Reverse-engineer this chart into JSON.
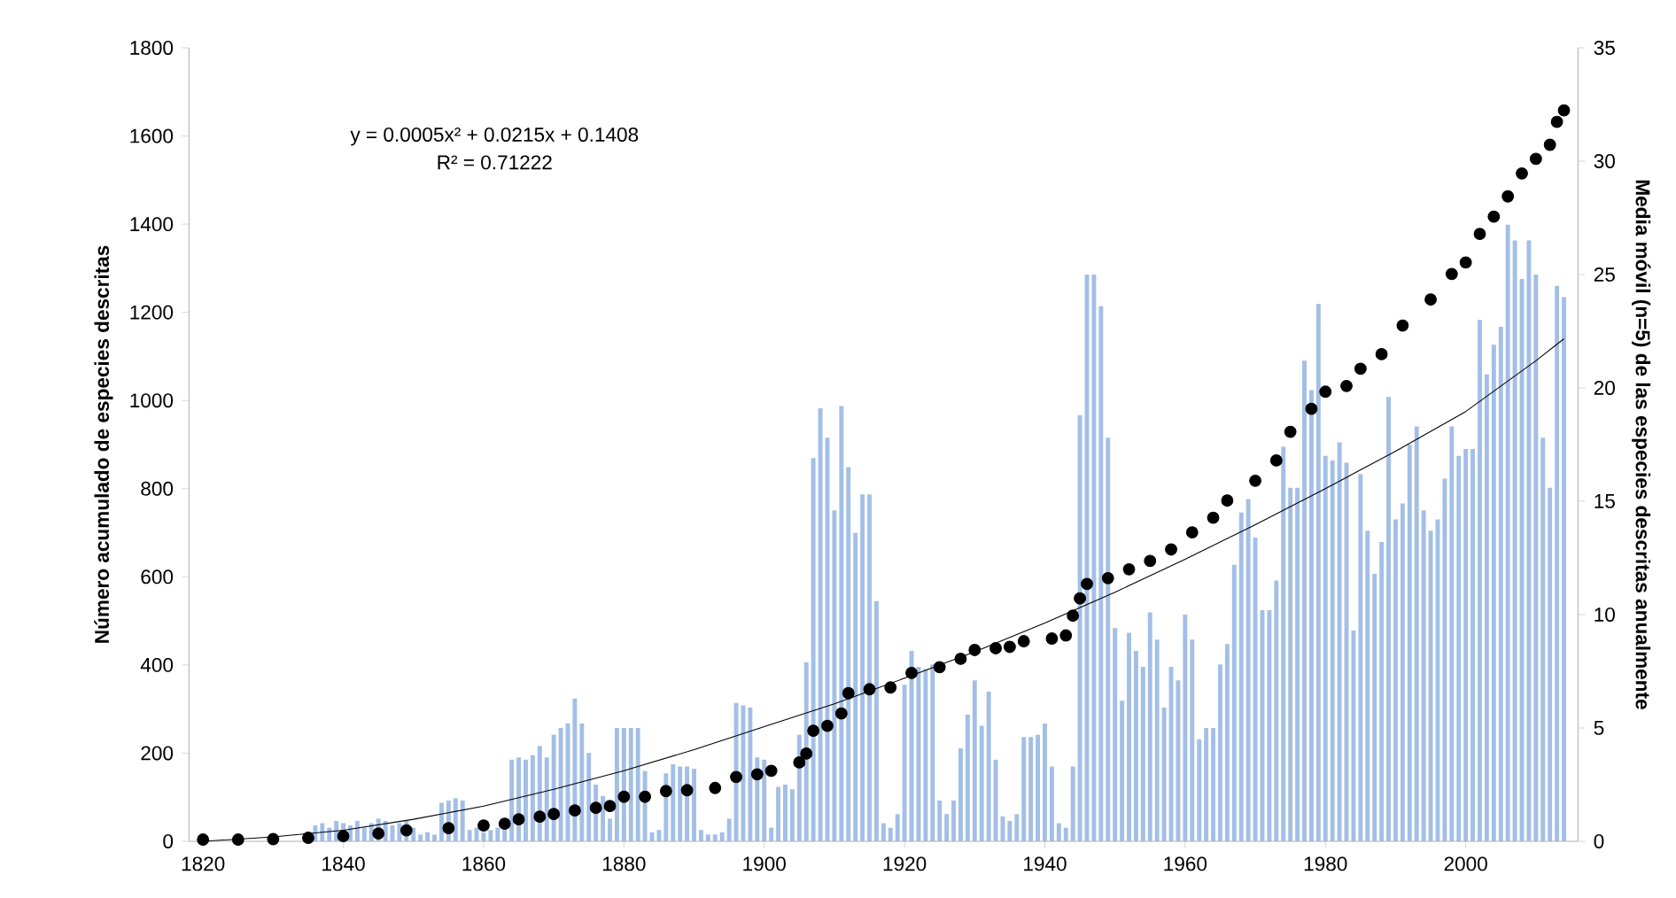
{
  "chart_data": {
    "type": "bar",
    "ylabel": "Número acumulado de especies descritas",
    "y2label": "Media móvil (n=5) de las especies descritas anualmente",
    "annotations": [
      "y = 0.0005x² + 0.0215x + 0.1408",
      "R² = 0.71222"
    ],
    "xlim": [
      1818,
      2016
    ],
    "xticks": [
      1820,
      1840,
      1860,
      1880,
      1900,
      1920,
      1940,
      1960,
      1980,
      2000
    ],
    "ylim": [
      0,
      1800
    ],
    "yticks": [
      0,
      200,
      400,
      600,
      800,
      1000,
      1200,
      1400,
      1600,
      1800
    ],
    "y2lim": [
      0,
      35
    ],
    "y2ticks": [
      0,
      5,
      10,
      15,
      20,
      25,
      30,
      35
    ],
    "series": [
      {
        "axis": "y2",
        "color": "#a3bfe6",
        "x": [
          1836,
          1837,
          1838,
          1839,
          1840,
          1841,
          1842,
          1843,
          1844,
          1845,
          1846,
          1847,
          1848,
          1849,
          1850,
          1851,
          1852,
          1853,
          1854,
          1855,
          1856,
          1857,
          1858,
          1859,
          1860,
          1861,
          1862,
          1863,
          1864,
          1865,
          1866,
          1867,
          1868,
          1869,
          1870,
          1871,
          1872,
          1873,
          1874,
          1875,
          1876,
          1877,
          1878,
          1879,
          1880,
          1881,
          1882,
          1883,
          1884,
          1885,
          1886,
          1887,
          1888,
          1889,
          1890,
          1891,
          1892,
          1893,
          1894,
          1895,
          1896,
          1897,
          1898,
          1899,
          1900,
          1901,
          1902,
          1903,
          1904,
          1905,
          1906,
          1907,
          1908,
          1909,
          1910,
          1911,
          1912,
          1913,
          1914,
          1915,
          1916,
          1917,
          1918,
          1919,
          1920,
          1921,
          1922,
          1923,
          1924,
          1925,
          1926,
          1927,
          1928,
          1929,
          1930,
          1931,
          1932,
          1933,
          1934,
          1935,
          1936,
          1937,
          1938,
          1939,
          1940,
          1941,
          1942,
          1943,
          1944,
          1945,
          1946,
          1947,
          1948,
          1949,
          1950,
          1951,
          1952,
          1953,
          1954,
          1955,
          1956,
          1957,
          1958,
          1959,
          1960,
          1961,
          1962,
          1963,
          1964,
          1965,
          1966,
          1967,
          1968,
          1969,
          1970,
          1971,
          1972,
          1973,
          1974,
          1975,
          1976,
          1977,
          1978,
          1979,
          1980,
          1981,
          1982,
          1983,
          1984,
          1985,
          1986,
          1987,
          1988,
          1989,
          1990,
          1991,
          1992,
          1993,
          1994,
          1995,
          1996,
          1997,
          1998,
          1999,
          2000,
          2001,
          2002,
          2003,
          2004,
          2005,
          2006,
          2007,
          2008,
          2009,
          2010,
          2011,
          2012,
          2013,
          2014
        ],
        "values": [
          0.7,
          0.8,
          0.6,
          0.9,
          0.8,
          0.7,
          0.9,
          0.6,
          0.8,
          1.0,
          0.9,
          0.7,
          0.8,
          0.9,
          0.6,
          0.3,
          0.4,
          0.3,
          1.7,
          1.8,
          1.9,
          1.8,
          0.5,
          0.6,
          0.4,
          0.5,
          0.6,
          0.5,
          3.6,
          3.7,
          3.6,
          3.8,
          4.2,
          3.7,
          4.7,
          5.0,
          5.2,
          6.3,
          5.2,
          3.9,
          2.5,
          2.0,
          1.0,
          5.0,
          5.0,
          5.0,
          5.0,
          3.1,
          0.4,
          0.5,
          3.0,
          3.4,
          3.3,
          3.3,
          3.2,
          0.5,
          0.3,
          0.3,
          0.4,
          1.0,
          6.1,
          6.0,
          5.9,
          3.7,
          3.6,
          0.6,
          2.4,
          2.5,
          2.3,
          4.7,
          7.9,
          16.9,
          19.1,
          17.8,
          14.6,
          19.2,
          16.5,
          13.6,
          15.3,
          15.3,
          10.6,
          0.8,
          0.6,
          1.2,
          6.9,
          8.4,
          7.7,
          7.6,
          7.8,
          1.8,
          1.2,
          1.8,
          4.1,
          5.6,
          7.1,
          5.1,
          6.6,
          3.6,
          1.1,
          0.9,
          1.2,
          4.6,
          4.6,
          4.7,
          5.2,
          3.3,
          0.8,
          0.6,
          3.3,
          18.8,
          25.0,
          25.0,
          23.6,
          17.8,
          9.4,
          6.2,
          9.2,
          8.4,
          7.7,
          10.1,
          8.9,
          5.9,
          7.7,
          7.1,
          10.0,
          8.9,
          4.5,
          5.0,
          5.0,
          7.8,
          8.7,
          12.2,
          14.5,
          15.1,
          13.4,
          10.2,
          10.2,
          11.5,
          17.4,
          15.6,
          15.6,
          21.2,
          19.9,
          23.7,
          17.0,
          16.8,
          17.6,
          16.7,
          9.3,
          16.2,
          13.7,
          11.8,
          13.2,
          19.6,
          14.2,
          14.9,
          17.5,
          18.3,
          14.6,
          13.7,
          14.2,
          16.0,
          18.3,
          17.0,
          17.3,
          17.3,
          23.0,
          20.6,
          21.9,
          22.7,
          27.2,
          26.5,
          24.8,
          26.5,
          25.0,
          17.8,
          15.6,
          24.5,
          24.0
        ]
      },
      {
        "type": "scatter",
        "color": "#000000",
        "marker": "circle",
        "x": [
          1820,
          1825,
          1830,
          1835,
          1840,
          1845,
          1849,
          1855,
          1860,
          1863,
          1865,
          1868,
          1870,
          1873,
          1876,
          1878,
          1880,
          1883,
          1886,
          1889,
          1893,
          1896,
          1899,
          1901,
          1905,
          1906,
          1907,
          1909,
          1911,
          1912,
          1915,
          1918,
          1921,
          1925,
          1928,
          1930,
          1933,
          1935,
          1937,
          1941,
          1943,
          1944,
          1945,
          1946,
          1949,
          1952,
          1955,
          1958,
          1961,
          1964,
          1966,
          1970,
          1973,
          1975,
          1978,
          1980,
          1983,
          1985,
          1988,
          1991,
          1995,
          1998,
          2000,
          2002,
          2004,
          2006,
          2008,
          2010,
          2012,
          2013,
          2014
        ],
        "values": [
          4,
          4,
          5,
          8,
          12,
          18,
          25,
          30,
          36,
          40,
          50,
          56,
          62,
          70,
          76,
          80,
          101,
          101,
          114,
          116,
          121,
          146,
          152,
          160,
          179,
          199,
          251,
          262,
          290,
          336,
          345,
          349,
          382,
          395,
          414,
          434,
          438,
          441,
          454,
          460,
          467,
          512,
          551,
          584,
          597,
          617,
          636,
          662,
          701,
          734,
          773,
          818,
          864,
          929,
          981,
          1020,
          1033,
          1072,
          1105,
          1170,
          1229,
          1287,
          1313,
          1378,
          1417,
          1463,
          1515,
          1548,
          1580,
          1632,
          1658
        ]
      },
      {
        "type": "line",
        "color": "#000000",
        "marker": "none",
        "x": [
          1820,
          1830,
          1840,
          1850,
          1860,
          1870,
          1880,
          1890,
          1900,
          1910,
          1920,
          1930,
          1940,
          1950,
          1960,
          1970,
          1980,
          1990,
          2000,
          2010,
          2014
        ],
        "values": [
          0,
          10,
          25,
          50,
          80,
          118,
          160,
          208,
          260,
          312,
          370,
          430,
          495,
          565,
          640,
          718,
          800,
          885,
          975,
          1090,
          1140
        ]
      }
    ]
  }
}
